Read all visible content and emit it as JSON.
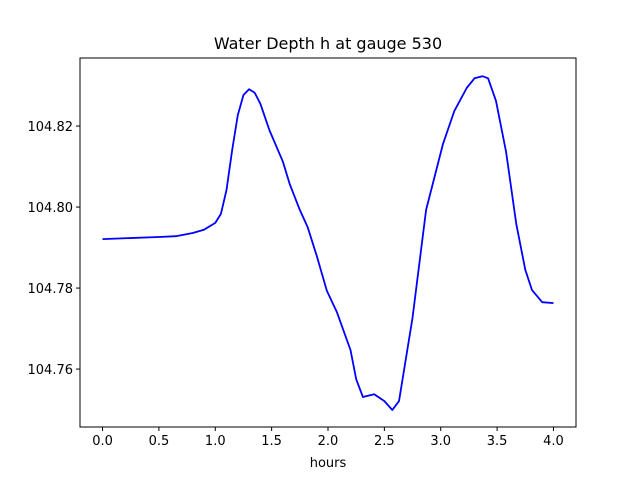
{
  "chart_data": {
    "type": "line",
    "title": "Water Depth h at gauge 530",
    "xlabel": "hours",
    "ylabel": "",
    "xlim": [
      -0.2,
      4.2
    ],
    "ylim": [
      104.7457,
      104.8368
    ],
    "grid": false,
    "x_ticks": [
      0.0,
      0.5,
      1.0,
      1.5,
      2.0,
      2.5,
      3.0,
      3.5,
      4.0
    ],
    "x_tick_labels": [
      "0.0",
      "0.5",
      "1.0",
      "1.5",
      "2.0",
      "2.5",
      "3.0",
      "3.5",
      "4.0"
    ],
    "y_ticks": [
      104.76,
      104.78,
      104.8,
      104.82
    ],
    "y_tick_labels": [
      "104.76",
      "104.78",
      "104.80",
      "104.82"
    ],
    "series": [
      {
        "name": "h",
        "color": "#0000ff",
        "x": [
          0.0,
          0.5,
          0.65,
          0.8,
          0.9,
          1.0,
          1.05,
          1.1,
          1.15,
          1.2,
          1.25,
          1.3,
          1.35,
          1.4,
          1.48,
          1.6,
          1.66,
          1.75,
          1.82,
          1.9,
          1.99,
          2.08,
          2.2,
          2.25,
          2.31,
          2.41,
          2.5,
          2.57,
          2.63,
          2.75,
          2.87,
          3.02,
          3.12,
          3.23,
          3.3,
          3.37,
          3.42,
          3.49,
          3.58,
          3.67,
          3.75,
          3.81,
          3.9,
          4.0
        ],
        "y": [
          104.7921,
          104.7926,
          104.7928,
          104.7936,
          104.7944,
          104.7961,
          104.7983,
          104.8042,
          104.8141,
          104.8227,
          104.8277,
          104.8291,
          104.8282,
          104.8255,
          104.819,
          104.8112,
          104.8057,
          104.7993,
          104.795,
          104.788,
          104.7793,
          104.774,
          104.7647,
          104.7575,
          104.7531,
          104.7538,
          104.7521,
          104.7499,
          104.7521,
          104.7726,
          104.7993,
          104.8156,
          104.8237,
          104.8294,
          104.8318,
          104.8323,
          104.8318,
          104.8262,
          104.8136,
          104.7958,
          104.7845,
          104.7795,
          104.7765,
          104.7763
        ]
      }
    ]
  }
}
